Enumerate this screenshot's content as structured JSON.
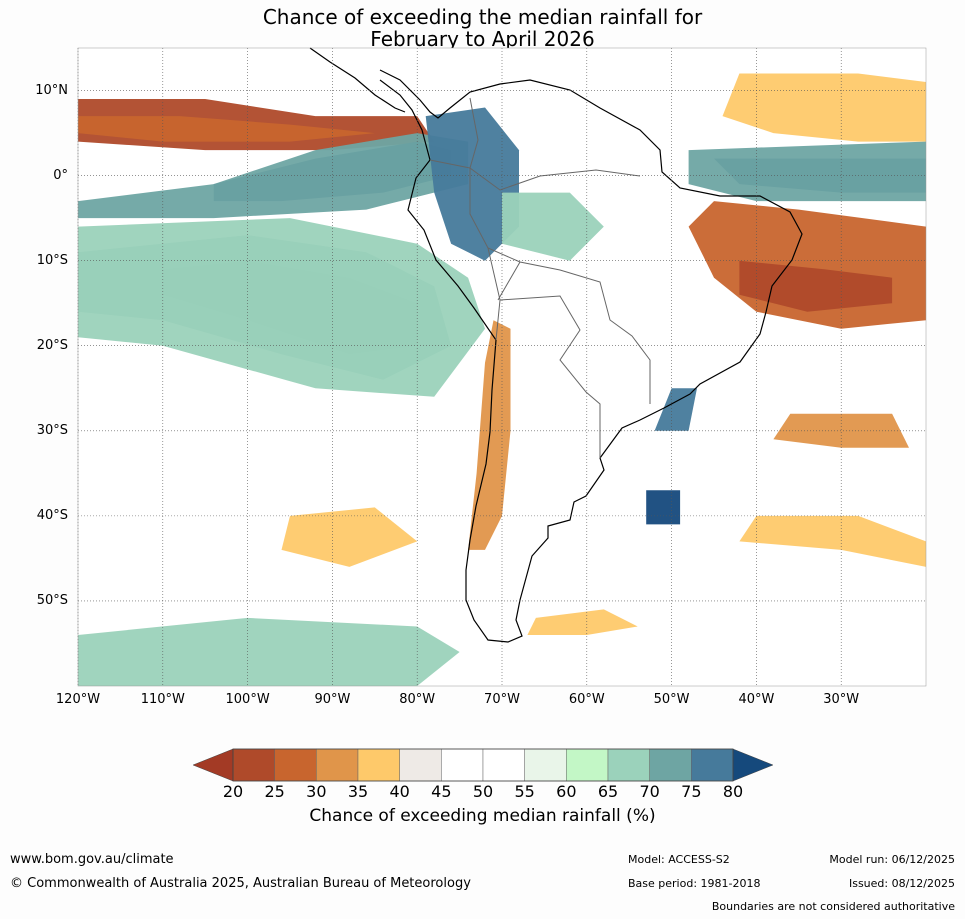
{
  "title": {
    "line1": "Chance of exceeding the median rainfall for",
    "line2": "February to April 2026"
  },
  "map": {
    "region": "South America",
    "lon_range": [
      -120,
      -20
    ],
    "lat_range": [
      -60,
      15
    ],
    "lat_labels": [
      {
        "value": 10,
        "text": "10°N"
      },
      {
        "value": 0,
        "text": "0°"
      },
      {
        "value": -10,
        "text": "10°S"
      },
      {
        "value": -20,
        "text": "20°S"
      },
      {
        "value": -30,
        "text": "30°S"
      },
      {
        "value": -40,
        "text": "40°S"
      },
      {
        "value": -50,
        "text": "50°S"
      }
    ],
    "lon_labels": [
      {
        "value": -120,
        "text": "120°W"
      },
      {
        "value": -110,
        "text": "110°W"
      },
      {
        "value": -100,
        "text": "100°W"
      },
      {
        "value": -90,
        "text": "90°W"
      },
      {
        "value": -80,
        "text": "80°W"
      },
      {
        "value": -70,
        "text": "70°W"
      },
      {
        "value": -60,
        "text": "60°W"
      },
      {
        "value": -50,
        "text": "50°W"
      },
      {
        "value": -40,
        "text": "40°W"
      },
      {
        "value": -30,
        "text": "30°W"
      }
    ],
    "regions": [
      {
        "name": "dry-pacific-north",
        "category": 20,
        "points": [
          [
            -120,
            9
          ],
          [
            -105,
            9
          ],
          [
            -92,
            7
          ],
          [
            -80,
            7
          ],
          [
            -78,
            4
          ],
          [
            -90,
            3
          ],
          [
            -105,
            3
          ],
          [
            -120,
            4
          ]
        ]
      },
      {
        "name": "dry-pacific-north-core",
        "category": 25,
        "points": [
          [
            -120,
            7
          ],
          [
            -108,
            7
          ],
          [
            -95,
            6
          ],
          [
            -85,
            5
          ],
          [
            -95,
            4
          ],
          [
            -110,
            4
          ],
          [
            -120,
            5
          ]
        ]
      },
      {
        "name": "dry-atlantic-north",
        "category": 35,
        "points": [
          [
            -42,
            12
          ],
          [
            -28,
            12
          ],
          [
            -20,
            11
          ],
          [
            -20,
            4
          ],
          [
            -28,
            4
          ],
          [
            -38,
            5
          ],
          [
            -44,
            7
          ]
        ]
      },
      {
        "name": "wet-equatorial-pacific",
        "category": 80,
        "points": [
          [
            -104,
            -1
          ],
          [
            -92,
            2
          ],
          [
            -80,
            4
          ],
          [
            -76,
            3
          ],
          [
            -76,
            0
          ],
          [
            -84,
            -2
          ],
          [
            -96,
            -3
          ],
          [
            -104,
            -3
          ]
        ]
      },
      {
        "name": "wet-equatorial-pacific-halo",
        "category": 70,
        "points": [
          [
            -120,
            -3
          ],
          [
            -104,
            -1
          ],
          [
            -92,
            3
          ],
          [
            -80,
            5
          ],
          [
            -74,
            4
          ],
          [
            -74,
            -1
          ],
          [
            -86,
            -4
          ],
          [
            -104,
            -5
          ],
          [
            -120,
            -5
          ]
        ]
      },
      {
        "name": "wet-se-pacific",
        "category": 80,
        "points": [
          [
            -110,
            -11
          ],
          [
            -100,
            -10
          ],
          [
            -88,
            -12
          ],
          [
            -80,
            -15
          ],
          [
            -80,
            -20
          ],
          [
            -88,
            -21
          ],
          [
            -100,
            -17
          ],
          [
            -110,
            -14
          ]
        ]
      },
      {
        "name": "wet-se-pacific-halo",
        "category": 70,
        "points": [
          [
            -120,
            -9
          ],
          [
            -100,
            -7
          ],
          [
            -86,
            -9
          ],
          [
            -78,
            -13
          ],
          [
            -76,
            -20
          ],
          [
            -84,
            -24
          ],
          [
            -96,
            -21
          ],
          [
            -110,
            -17
          ],
          [
            -120,
            -16
          ]
        ]
      },
      {
        "name": "wet-pacific-broad",
        "category": 65,
        "points": [
          [
            -120,
            -6
          ],
          [
            -95,
            -5
          ],
          [
            -80,
            -8
          ],
          [
            -74,
            -12
          ],
          [
            -72,
            -18
          ],
          [
            -78,
            -26
          ],
          [
            -92,
            -25
          ],
          [
            -110,
            -20
          ],
          [
            -120,
            -19
          ]
        ]
      },
      {
        "name": "wet-colombia-peru",
        "category": 75,
        "points": [
          [
            -79,
            7
          ],
          [
            -72,
            8
          ],
          [
            -68,
            3
          ],
          [
            -68,
            -6
          ],
          [
            -72,
            -10
          ],
          [
            -76,
            -8
          ],
          [
            -78,
            -2
          ]
        ]
      },
      {
        "name": "wet-atlantic-equator",
        "category": 80,
        "points": [
          [
            -45,
            2
          ],
          [
            -32,
            2
          ],
          [
            -20,
            2
          ],
          [
            -20,
            -2
          ],
          [
            -30,
            -2
          ],
          [
            -42,
            -1
          ]
        ]
      },
      {
        "name": "wet-atlantic-equator-halo",
        "category": 70,
        "points": [
          [
            -48,
            3
          ],
          [
            -20,
            4
          ],
          [
            -20,
            -3
          ],
          [
            -40,
            -3
          ],
          [
            -48,
            -1
          ]
        ]
      },
      {
        "name": "dry-ne-brazil",
        "category": 25,
        "points": [
          [
            -45,
            -3
          ],
          [
            -35,
            -4
          ],
          [
            -20,
            -6
          ],
          [
            -20,
            -17
          ],
          [
            -30,
            -18
          ],
          [
            -40,
            -16
          ],
          [
            -45,
            -12
          ],
          [
            -48,
            -6
          ]
        ]
      },
      {
        "name": "dry-ne-brazil-core",
        "category": 20,
        "points": [
          [
            -42,
            -10
          ],
          [
            -32,
            -11
          ],
          [
            -24,
            -12
          ],
          [
            -24,
            -15
          ],
          [
            -34,
            -16
          ],
          [
            -42,
            -14
          ]
        ]
      },
      {
        "name": "dry-chile-coast",
        "category": 30,
        "points": [
          [
            -71,
            -17
          ],
          [
            -69,
            -18
          ],
          [
            -69,
            -30
          ],
          [
            -70,
            -40
          ],
          [
            -72,
            -44
          ],
          [
            -74,
            -44
          ],
          [
            -73,
            -35
          ],
          [
            -72,
            -22
          ]
        ]
      },
      {
        "name": "wet-south-brazil",
        "category": 75,
        "points": [
          [
            -50,
            -25
          ],
          [
            -47,
            -25
          ],
          [
            -48,
            -30
          ],
          [
            -52,
            -30
          ]
        ]
      },
      {
        "name": "wet-uruguay-offshore",
        "category": 80,
        "points": [
          [
            -53,
            -37
          ],
          [
            -49,
            -37
          ],
          [
            -49,
            -41
          ],
          [
            -53,
            -41
          ]
        ]
      },
      {
        "name": "dry-atlantic-se",
        "category": 30,
        "points": [
          [
            -36,
            -28
          ],
          [
            -24,
            -28
          ],
          [
            -22,
            -32
          ],
          [
            -30,
            -32
          ],
          [
            -38,
            -31
          ]
        ]
      },
      {
        "name": "dry-south-atlantic",
        "category": 35,
        "points": [
          [
            -40,
            -40
          ],
          [
            -28,
            -40
          ],
          [
            -20,
            -43
          ],
          [
            -20,
            -46
          ],
          [
            -30,
            -44
          ],
          [
            -42,
            -43
          ]
        ]
      },
      {
        "name": "wet-southern-ocean",
        "category": 65,
        "points": [
          [
            -120,
            -54
          ],
          [
            -100,
            -52
          ],
          [
            -80,
            -53
          ],
          [
            -75,
            -56
          ],
          [
            -80,
            -60
          ],
          [
            -120,
            -60
          ]
        ]
      },
      {
        "name": "dry-southern-pacific",
        "category": 35,
        "points": [
          [
            -95,
            -40
          ],
          [
            -85,
            -39
          ],
          [
            -80,
            -43
          ],
          [
            -88,
            -46
          ],
          [
            -96,
            -44
          ]
        ]
      },
      {
        "name": "dry-falklands",
        "category": 35,
        "points": [
          [
            -66,
            -52
          ],
          [
            -58,
            -51
          ],
          [
            -54,
            -53
          ],
          [
            -60,
            -54
          ],
          [
            -67,
            -54
          ]
        ]
      },
      {
        "name": "wet-amazon",
        "category": 65,
        "points": [
          [
            -70,
            -2
          ],
          [
            -62,
            -2
          ],
          [
            -58,
            -6
          ],
          [
            -62,
            -10
          ],
          [
            -70,
            -8
          ]
        ]
      }
    ]
  },
  "colorbar": {
    "ticks": [
      "20",
      "25",
      "30",
      "35",
      "40",
      "45",
      "50",
      "55",
      "60",
      "65",
      "70",
      "75",
      "80"
    ],
    "colors": [
      "#a33a25",
      "#af4a2a",
      "#c8652e",
      "#e0954a",
      "#fec96a",
      "#eeeae6",
      "#ffffff",
      "#ffffff",
      "#e9f5e9",
      "#c3f7c6",
      "#9bd2bb",
      "#6ea5a3",
      "#467a9b",
      "#15497c"
    ],
    "label": "Chance of exceeding median rainfall (%)"
  },
  "footer": {
    "url": "www.bom.gov.au/climate",
    "copyright": "© Commonwealth of Australia 2025, Australian Bureau of Meteorology",
    "model": "Model: ACCESS-S2",
    "base_period": "Base period: 1981-2018",
    "model_run": "Model run: 06/12/2025",
    "issued": "Issued: 08/12/2025",
    "boundaries": "Boundaries are not considered authoritative"
  }
}
